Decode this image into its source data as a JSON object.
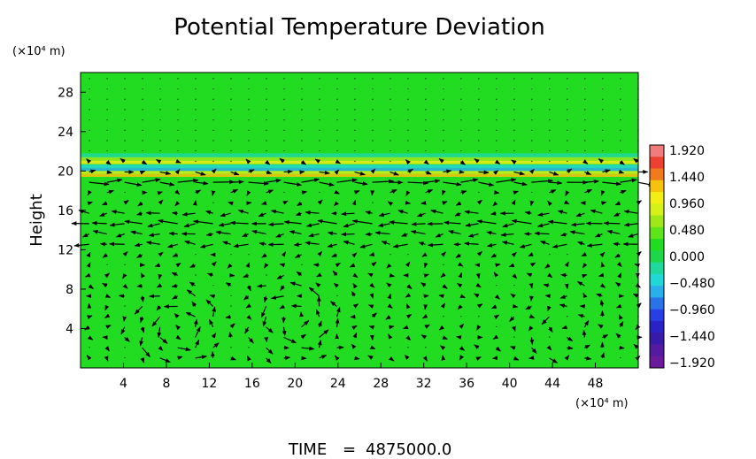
{
  "chart_data": {
    "type": "heatmap",
    "title": "Potential Temperature Deviation",
    "ylabel": "Height",
    "xunit": "(×10⁴ m)",
    "yunit": "(×10⁴ m)",
    "xlim": [
      0,
      52
    ],
    "ylim": [
      0,
      30
    ],
    "xticks": [
      4,
      8,
      12,
      16,
      20,
      24,
      28,
      32,
      36,
      40,
      44,
      48
    ],
    "yticks": [
      4,
      8,
      12,
      16,
      20,
      24,
      28
    ],
    "background_value": 0.0,
    "band": {
      "y_center": 20.5,
      "values": [
        0.48,
        0.96,
        -0.48,
        -0.96
      ]
    },
    "colorbar": {
      "labels": [
        "1.920",
        "1.440",
        "0.960",
        "0.480",
        "0.000",
        "−0.480",
        "−0.960",
        "−1.440",
        "−1.920"
      ],
      "colors": [
        "#f07c7c",
        "#ee4030",
        "#f27a1e",
        "#f6c20c",
        "#f2ef16",
        "#d6f01a",
        "#9ee817",
        "#5fe31a",
        "#22dc22",
        "#1ed64a",
        "#1ed89c",
        "#22d8d6",
        "#29b0ea",
        "#2a72e6",
        "#2a3ee6",
        "#2a22c6",
        "#381aa8",
        "#541aa0",
        "#6a1a9a"
      ]
    },
    "vectors": {
      "note": "wind vector field overlay",
      "vortices": [
        {
          "x": 9,
          "y": 4,
          "strength": 1
        },
        {
          "x": 20,
          "y": 5,
          "strength": 1
        },
        {
          "x": 45.5,
          "y": 4,
          "strength": 0.6
        }
      ],
      "jets": [
        {
          "y": 19,
          "u": 1
        },
        {
          "y": 15,
          "u": -1
        },
        {
          "y": 13,
          "u": -0.8
        }
      ]
    },
    "grid": false,
    "legend": "right colorbar"
  },
  "footer": {
    "time_label": "TIME",
    "equals": "=",
    "time_value": "4875000.0"
  }
}
